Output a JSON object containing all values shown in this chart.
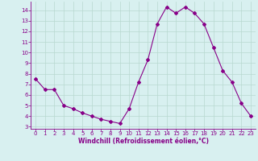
{
  "x": [
    0,
    1,
    2,
    3,
    4,
    5,
    6,
    7,
    8,
    9,
    10,
    11,
    12,
    13,
    14,
    15,
    16,
    17,
    18,
    19,
    20,
    21,
    22,
    23
  ],
  "y": [
    7.5,
    6.5,
    6.5,
    5.0,
    4.7,
    4.3,
    4.0,
    3.7,
    3.5,
    3.3,
    4.7,
    7.2,
    9.3,
    12.7,
    14.3,
    13.7,
    14.3,
    13.7,
    12.7,
    10.5,
    8.3,
    7.2,
    5.2,
    4.0
  ],
  "line_color": "#880088",
  "marker": "D",
  "marker_size": 2.0,
  "bg_color": "#d8f0f0",
  "grid_color": "#b8d8d0",
  "xlabel": "Windchill (Refroidissement éolien,°C)",
  "xlabel_color": "#880088",
  "tick_color": "#880088",
  "ylim": [
    2.8,
    14.8
  ],
  "xlim": [
    -0.5,
    23.5
  ],
  "yticks": [
    3,
    4,
    5,
    6,
    7,
    8,
    9,
    10,
    11,
    12,
    13,
    14
  ],
  "xticks": [
    0,
    1,
    2,
    3,
    4,
    5,
    6,
    7,
    8,
    9,
    10,
    11,
    12,
    13,
    14,
    15,
    16,
    17,
    18,
    19,
    20,
    21,
    22,
    23
  ],
  "tick_fontsize": 5.0,
  "xlabel_fontsize": 5.5,
  "xlabel_fontweight": "bold"
}
